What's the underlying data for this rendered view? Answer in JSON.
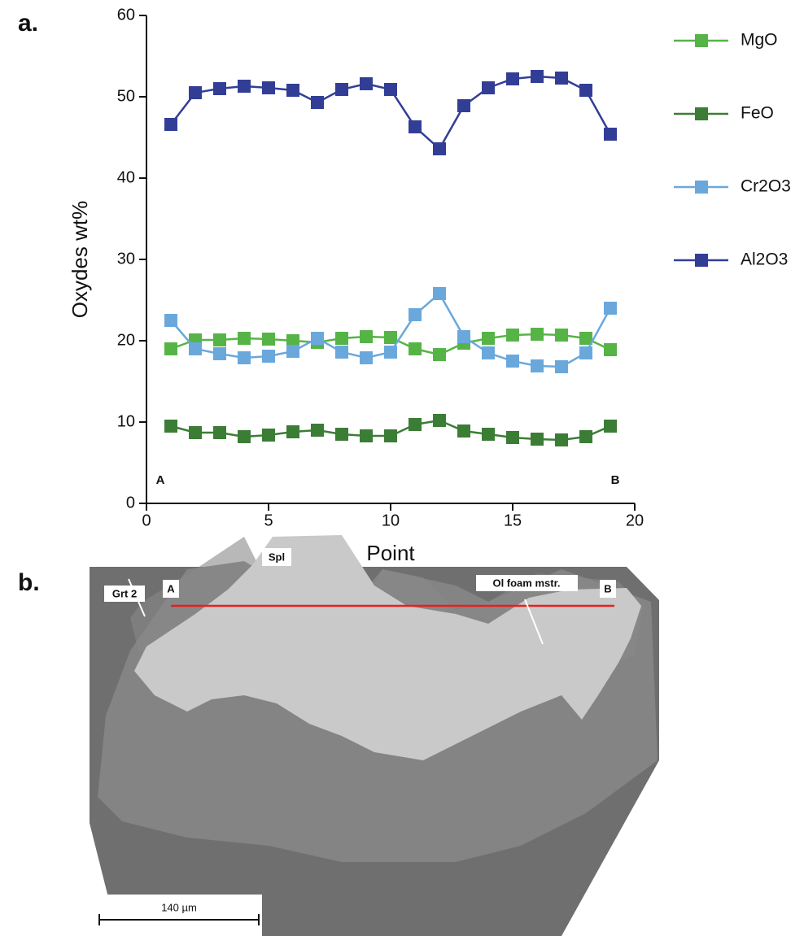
{
  "panel_labels": [
    "a.",
    "b."
  ],
  "chart_data": {
    "type": "line",
    "x_label": "Point",
    "y_label": "Oxydes wt%",
    "x": [
      1,
      2,
      3,
      4,
      5,
      6,
      7,
      8,
      9,
      10,
      11,
      12,
      13,
      14,
      15,
      16,
      17,
      18,
      19
    ],
    "xlim": [
      0,
      20
    ],
    "xticks": [
      0,
      5,
      10,
      15,
      20
    ],
    "ylim": [
      0,
      60
    ],
    "yticks": [
      0,
      10,
      20,
      30,
      40,
      50,
      60
    ],
    "annotations": [
      "A",
      "B"
    ],
    "series": [
      {
        "name": "MgO",
        "color": "#56b447",
        "values": [
          19.0,
          20.1,
          20.1,
          20.3,
          20.2,
          20.0,
          19.8,
          20.3,
          20.5,
          20.4,
          19.0,
          18.3,
          19.7,
          20.3,
          20.7,
          20.8,
          20.7,
          20.3,
          18.9
        ]
      },
      {
        "name": "FeO",
        "color": "#3b7d35",
        "values": [
          9.5,
          8.7,
          8.7,
          8.2,
          8.4,
          8.8,
          9.0,
          8.5,
          8.3,
          8.3,
          9.7,
          10.2,
          8.9,
          8.5,
          8.1,
          7.9,
          7.8,
          8.2,
          9.5
        ]
      },
      {
        "name": "Cr2O3",
        "color": "#6aa8dc",
        "values": [
          22.5,
          19.0,
          18.4,
          17.9,
          18.1,
          18.7,
          20.3,
          18.6,
          17.9,
          18.6,
          23.2,
          25.8,
          20.5,
          18.5,
          17.5,
          16.9,
          16.8,
          18.5,
          24.0
        ]
      },
      {
        "name": "Al2O3",
        "color": "#323e96",
        "values": [
          46.6,
          50.5,
          51.0,
          51.3,
          51.1,
          50.8,
          49.3,
          50.9,
          51.6,
          50.9,
          46.3,
          43.6,
          48.9,
          51.1,
          52.2,
          52.5,
          52.3,
          50.8,
          45.4
        ]
      }
    ]
  },
  "image": {
    "labels": {
      "matrix": "Ol foam mstr.",
      "garnet": "Grt 2",
      "spinel": "Spl",
      "start": "A",
      "end": "B",
      "scale": "140 µm"
    }
  }
}
